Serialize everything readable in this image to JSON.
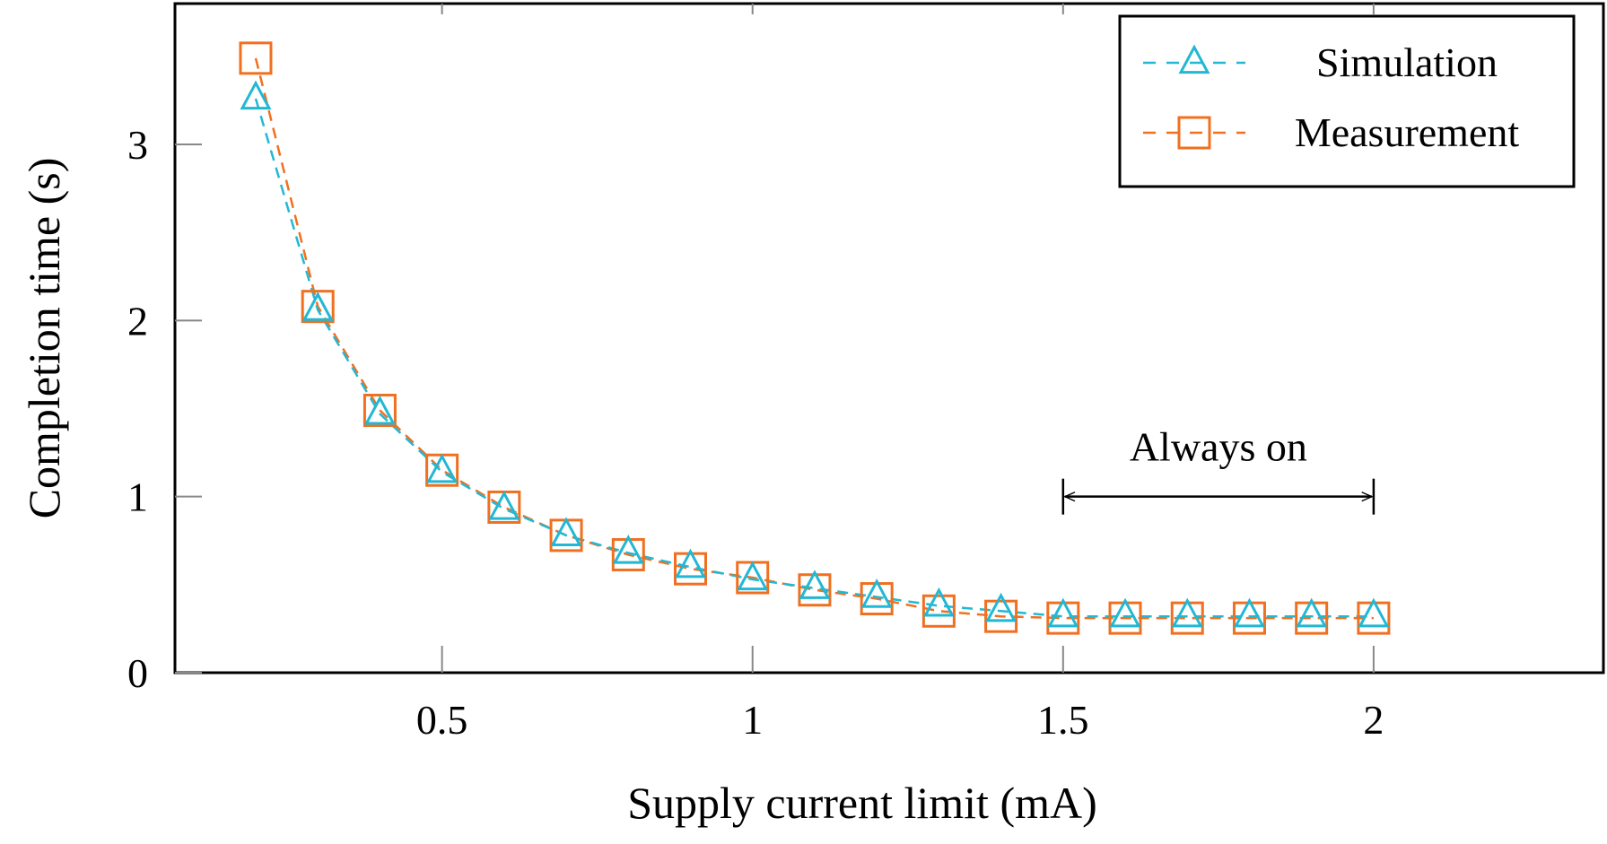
{
  "chart_data": {
    "type": "line",
    "title": "",
    "xlabel": "Supply current limit (mA)",
    "ylabel": "Completion time (s)",
    "xlim": [
      0.07,
      2.37
    ],
    "ylim": [
      0,
      3.8
    ],
    "xticks": [
      0.5,
      1,
      1.5,
      2
    ],
    "xtick_labels": [
      "0.5",
      "1",
      "1.5",
      "2"
    ],
    "yticks": [
      0,
      1,
      2,
      3
    ],
    "ytick_labels": [
      "0",
      "1",
      "2",
      "3"
    ],
    "grid": false,
    "legend_position": "top-right",
    "x": [
      0.2,
      0.3,
      0.4,
      0.5,
      0.6,
      0.7,
      0.8,
      0.9,
      1.0,
      1.1,
      1.2,
      1.3,
      1.4,
      1.5,
      1.6,
      1.7,
      1.8,
      1.9,
      2.0
    ],
    "series": [
      {
        "name": "Simulation",
        "color": "#22b8d4",
        "marker": "triangle",
        "line_style": "dashed",
        "values": [
          3.26,
          2.06,
          1.47,
          1.14,
          0.93,
          0.78,
          0.68,
          0.6,
          0.53,
          0.48,
          0.43,
          0.38,
          0.35,
          0.32,
          0.32,
          0.32,
          0.32,
          0.32,
          0.32
        ]
      },
      {
        "name": "Measurement",
        "color": "#f07020",
        "marker": "square",
        "line_style": "dashed",
        "values": [
          3.49,
          2.08,
          1.49,
          1.15,
          0.94,
          0.78,
          0.67,
          0.59,
          0.54,
          0.47,
          0.42,
          0.35,
          0.32,
          0.31,
          0.31,
          0.31,
          0.31,
          0.31,
          0.31
        ]
      }
    ],
    "annotations": [
      {
        "text": "Always on",
        "x_start": 1.5,
        "x_end": 2.0,
        "y": 1.0
      }
    ]
  }
}
